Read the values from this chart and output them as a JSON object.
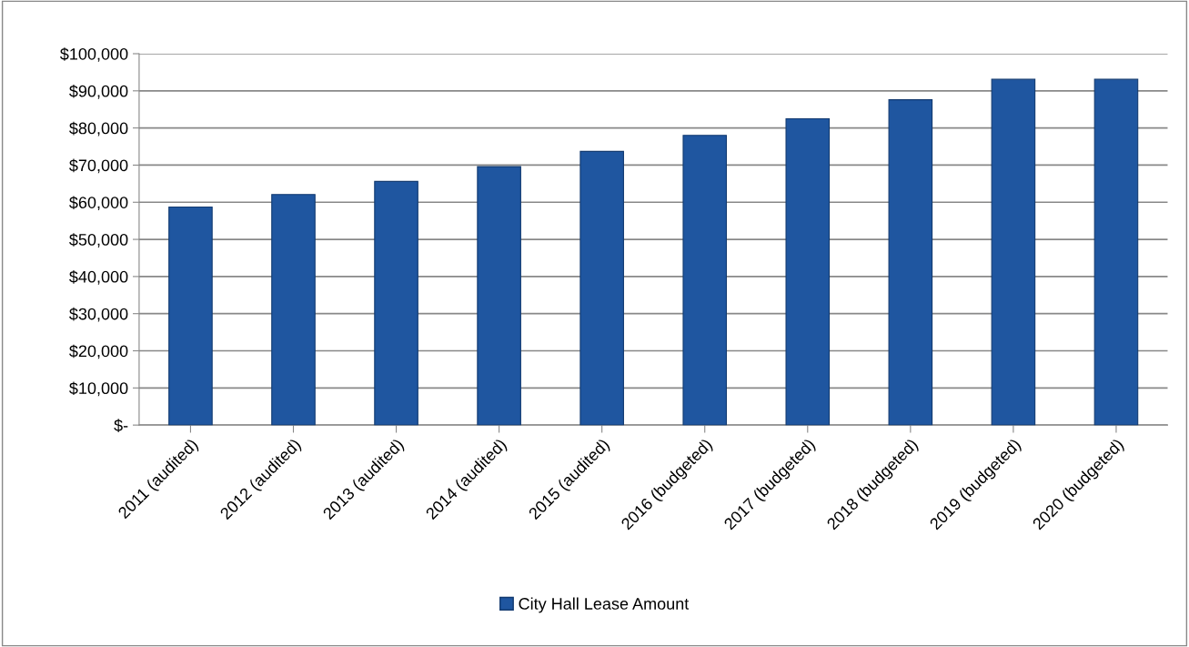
{
  "chart_data": {
    "type": "bar",
    "categories": [
      "2011 (audited)",
      "2012 (audited)",
      "2013 (audited)",
      "2014 (audited)",
      "2015 (audited)",
      "2016 (budgeted)",
      "2017 (budgeted)",
      "2018 (budgeted)",
      "2019 (budgeted)",
      "2020 (budgeted)"
    ],
    "series": [
      {
        "name": "City Hall Lease Amount",
        "color": "#1f56a0",
        "values": [
          58700,
          62100,
          65600,
          69600,
          73700,
          78000,
          82500,
          87600,
          93100,
          93100
        ]
      }
    ],
    "ylim": [
      0,
      100000
    ],
    "yticks": [
      {
        "value": 0,
        "label": "$-"
      },
      {
        "value": 10000,
        "label": "$10,000"
      },
      {
        "value": 20000,
        "label": "$20,000"
      },
      {
        "value": 30000,
        "label": "$30,000"
      },
      {
        "value": 40000,
        "label": "$40,000"
      },
      {
        "value": 50000,
        "label": "$50,000"
      },
      {
        "value": 60000,
        "label": "$60,000"
      },
      {
        "value": 70000,
        "label": "$70,000"
      },
      {
        "value": 80000,
        "label": "$80,000"
      },
      {
        "value": 90000,
        "label": "$90,000"
      },
      {
        "value": 100000,
        "label": "$100,000"
      }
    ],
    "grid": "y",
    "legend": "bottom"
  }
}
